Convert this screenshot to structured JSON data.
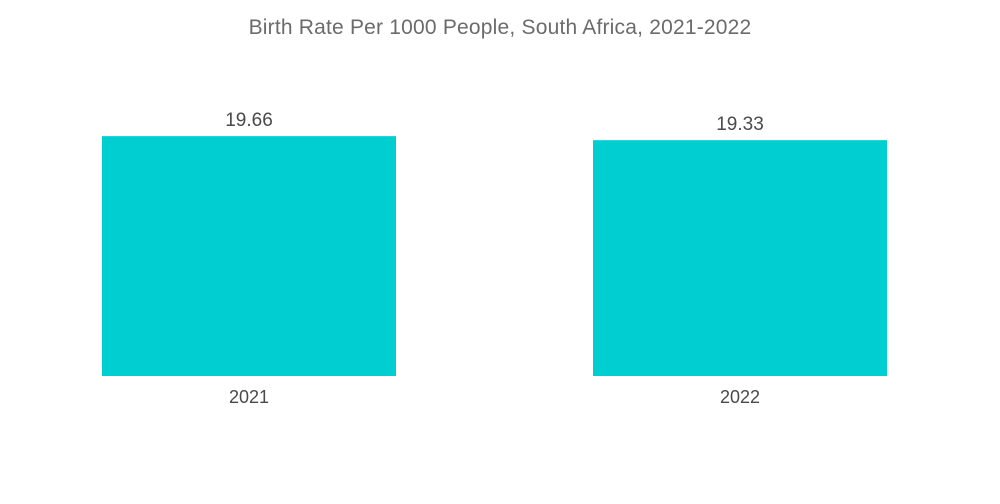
{
  "chart_data": {
    "type": "bar",
    "title": "Birth Rate Per 1000 People,  South Africa, 2021-2022",
    "xlabel": "",
    "ylabel": "",
    "categories": [
      "2021",
      "2022"
    ],
    "values": [
      19.66,
      19.33
    ],
    "value_labels": [
      "19.66",
      "19.33"
    ],
    "ylim": [
      0,
      20
    ],
    "grid": false,
    "bar_color": "#00CED1"
  }
}
